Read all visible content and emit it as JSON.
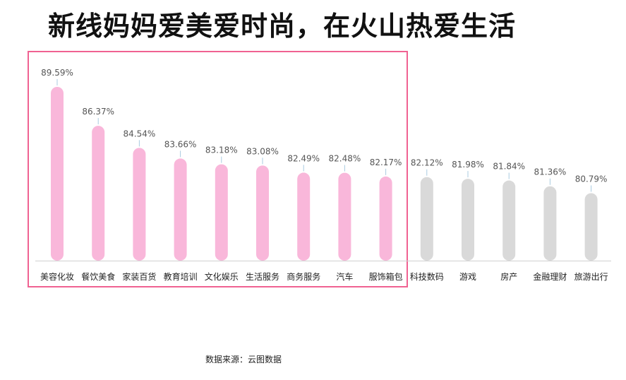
{
  "title": "新线妈妈爱美爱时尚，在火山热爱生活",
  "source": "数据来源：云图数据",
  "colors": {
    "highlight_bar": "#f9b7da",
    "normal_bar": "#d9d9d9",
    "highlight_border": "#f06292",
    "baseline": "#d0d0d0",
    "leader_line": "#a9cbe0"
  },
  "chart_data": {
    "type": "bar",
    "bar_style": "rounded-capsule",
    "categories": [
      "美容化妆",
      "餐饮美食",
      "家装百货",
      "教育培训",
      "文化娱乐",
      "生活服务",
      "商务服务",
      "汽车",
      "服饰箱包",
      "科技数码",
      "游戏",
      "房产",
      "金融理财",
      "旅游出行"
    ],
    "values": [
      89.59,
      86.37,
      84.54,
      83.66,
      83.18,
      83.08,
      82.49,
      82.48,
      82.17,
      82.12,
      81.98,
      81.84,
      81.36,
      80.79
    ],
    "labels": [
      "89.59%",
      "86.37%",
      "84.54%",
      "83.66%",
      "83.18%",
      "83.08%",
      "82.49%",
      "82.48%",
      "82.17%",
      "82.12%",
      "81.98%",
      "81.84%",
      "81.36%",
      "80.79%"
    ],
    "highlighted_count": 9,
    "title": "",
    "xlabel": "",
    "ylabel": "",
    "grid": false,
    "legend": "none"
  }
}
